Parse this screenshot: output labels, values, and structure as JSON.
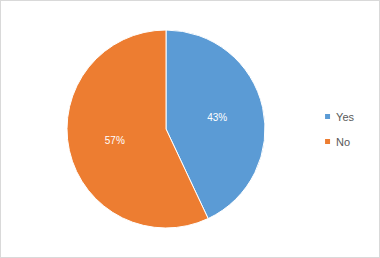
{
  "chart_data": {
    "type": "pie",
    "categories": [
      "Yes",
      "No"
    ],
    "values": [
      43,
      57
    ],
    "value_labels": [
      "43%",
      "57%"
    ],
    "colors": [
      "#5b9bd5",
      "#ed7d31"
    ],
    "data_labels": true,
    "legend": "right"
  }
}
